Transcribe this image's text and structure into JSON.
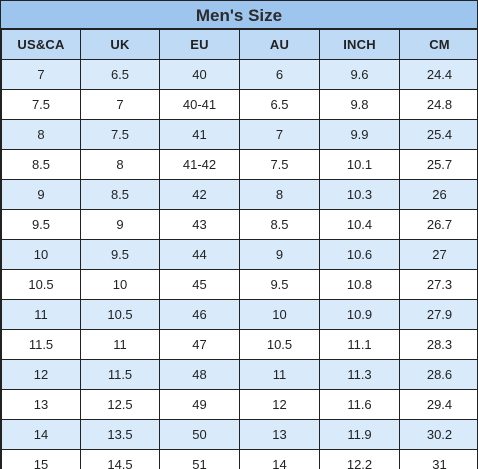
{
  "title": "Men's Size",
  "columns": [
    "US&CA",
    "UK",
    "EU",
    "AU",
    "INCH",
    "CM"
  ],
  "rows": [
    [
      "7",
      "6.5",
      "40",
      "6",
      "9.6",
      "24.4"
    ],
    [
      "7.5",
      "7",
      "40-41",
      "6.5",
      "9.8",
      "24.8"
    ],
    [
      "8",
      "7.5",
      "41",
      "7",
      "9.9",
      "25.4"
    ],
    [
      "8.5",
      "8",
      "41-42",
      "7.5",
      "10.1",
      "25.7"
    ],
    [
      "9",
      "8.5",
      "42",
      "8",
      "10.3",
      "26"
    ],
    [
      "9.5",
      "9",
      "43",
      "8.5",
      "10.4",
      "26.7"
    ],
    [
      "10",
      "9.5",
      "44",
      "9",
      "10.6",
      "27"
    ],
    [
      "10.5",
      "10",
      "45",
      "9.5",
      "10.8",
      "27.3"
    ],
    [
      "11",
      "10.5",
      "46",
      "10",
      "10.9",
      "27.9"
    ],
    [
      "11.5",
      "11",
      "47",
      "10.5",
      "11.1",
      "28.3"
    ],
    [
      "12",
      "11.5",
      "48",
      "11",
      "11.3",
      "28.6"
    ],
    [
      "13",
      "12.5",
      "49",
      "12",
      "11.6",
      "29.4"
    ],
    [
      "14",
      "13.5",
      "50",
      "13",
      "11.9",
      "30.2"
    ],
    [
      "15",
      "14.5",
      "51",
      "14",
      "12.2",
      "31"
    ]
  ],
  "colors": {
    "title_bg": "#9dc5ee",
    "header_bg": "#bfdaf5",
    "row_alt_bg": "#d9ebfb",
    "row_bg": "#ffffff",
    "border": "#222222"
  }
}
